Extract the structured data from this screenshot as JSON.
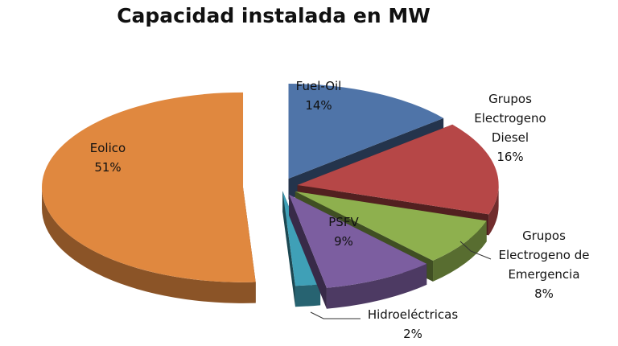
{
  "chart_data": {
    "type": "pie",
    "title": "Capacidad instalada en MW",
    "value_unit": "%",
    "slices": [
      {
        "label": "Fuel-Oil",
        "value": 14,
        "value_label": "14%",
        "color": "#4f74a8"
      },
      {
        "label": "Grupos Electrogeno Diesel",
        "value": 16,
        "value_label": "16%",
        "color": "#b64747"
      },
      {
        "label": "Grupos Electrogeno de Emergencia",
        "value": 8,
        "value_label": "8%",
        "color": "#8eb04e"
      },
      {
        "label": "PSFV",
        "value": 9,
        "value_label": "9%",
        "color": "#7c5ea0"
      },
      {
        "label": "Hidroeléctricas",
        "value": 2,
        "value_label": "2%",
        "color": "#3fa0b7"
      },
      {
        "label": "Eolico",
        "value": 51,
        "value_label": "51%",
        "color": "#e0883f"
      }
    ],
    "style": "3d-exploded"
  }
}
